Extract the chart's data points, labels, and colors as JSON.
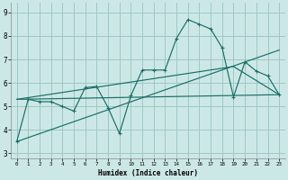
{
  "xlabel": "Humidex (Indice chaleur)",
  "bg_color": "#cce8e6",
  "grid_color": "#9ec8c5",
  "line_color": "#1a6e68",
  "x_ticks": [
    0,
    1,
    2,
    3,
    4,
    5,
    6,
    7,
    8,
    9,
    10,
    11,
    12,
    13,
    14,
    15,
    16,
    17,
    18,
    19,
    20,
    21,
    22,
    23
  ],
  "ylim": [
    2.8,
    9.4
  ],
  "xlim": [
    -0.5,
    23.5
  ],
  "yticks": [
    3,
    4,
    5,
    6,
    7,
    8,
    9
  ],
  "line1_x": [
    0,
    1,
    2,
    3,
    4,
    5,
    6,
    7,
    8,
    9,
    10,
    11,
    12,
    13,
    14,
    15,
    16,
    17,
    18,
    19,
    20,
    21,
    22,
    23
  ],
  "line1_y": [
    3.5,
    5.3,
    5.2,
    5.2,
    5.0,
    4.8,
    5.8,
    5.85,
    4.95,
    3.85,
    5.45,
    6.55,
    6.55,
    6.55,
    7.9,
    8.7,
    8.5,
    8.3,
    7.5,
    5.4,
    6.9,
    6.5,
    6.3,
    5.5
  ],
  "line2_x": [
    0,
    23
  ],
  "line2_y": [
    3.5,
    7.4
  ],
  "line3_x": [
    0,
    23
  ],
  "line3_y": [
    5.3,
    5.5
  ],
  "line4_x": [
    0,
    19,
    23
  ],
  "line4_y": [
    5.3,
    6.7,
    5.5
  ]
}
